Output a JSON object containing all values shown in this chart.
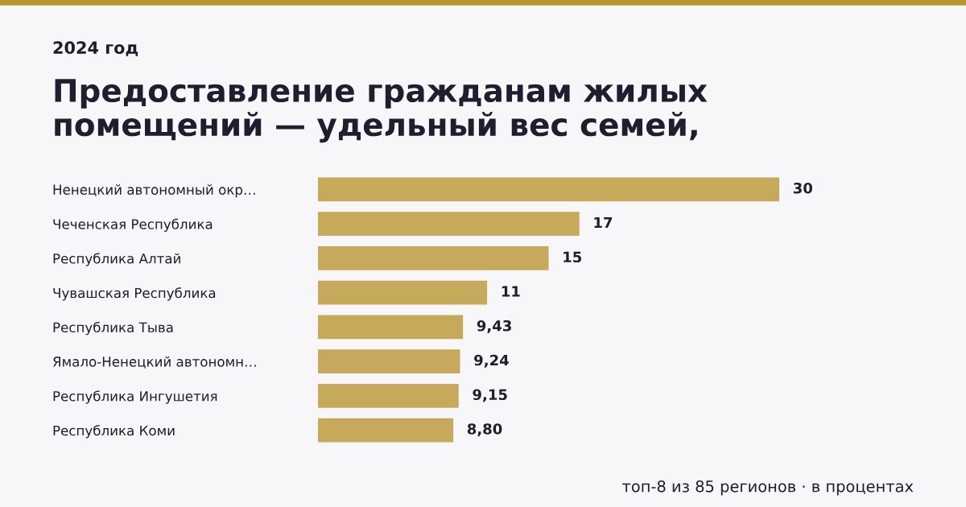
{
  "chart_data": {
    "type": "bar",
    "orientation": "horizontal",
    "title": "Предоставление гражданам жилых\nпомещений — удельный вес семей,",
    "subtitle": "2024 год",
    "categories": [
      "Ненецкий автономный окр…",
      "Чеченская Республика",
      "Республика Алтай",
      "Чувашская Республика",
      "Республика Тыва",
      "Ямало-Ненецкий автономн…",
      "Республика Ингушетия",
      "Республика Коми"
    ],
    "values": [
      30,
      17,
      15,
      11,
      9.43,
      9.24,
      9.15,
      8.8
    ],
    "value_labels": [
      "30",
      "17",
      "15",
      "11",
      "9,43",
      "9,24",
      "9,15",
      "8,80"
    ],
    "color": "#c6a95a",
    "grid": false,
    "legend": false,
    "annotations": [
      "топ-8 из 85 регионов · в процентах"
    ]
  }
}
